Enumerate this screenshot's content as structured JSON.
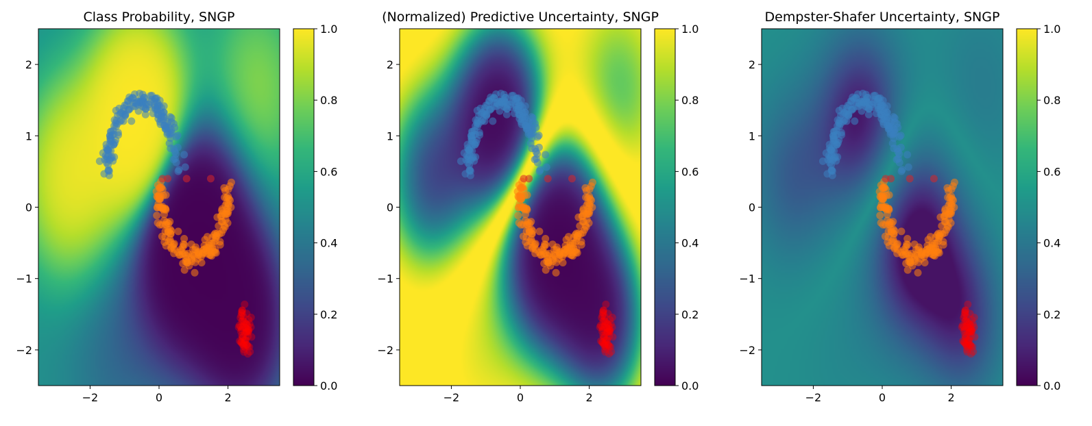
{
  "chart_data": [
    {
      "type": "heatmap",
      "title": "Class Probability, SNGP",
      "xlabel": "",
      "ylabel": "",
      "xlim": [
        -3.5,
        3.5
      ],
      "ylim": [
        -2.5,
        2.5
      ],
      "xticks": [
        "−2",
        "0",
        "2"
      ],
      "yticks": [
        "−2",
        "−1",
        "0",
        "1",
        "2"
      ],
      "colorbar": {
        "range": [
          0.0,
          1.0
        ],
        "ticks": [
          "0.0",
          "0.2",
          "0.4",
          "0.6",
          "0.8",
          "1.0"
        ],
        "colormap": "viridis"
      },
      "field": "class_probability",
      "grid": false,
      "legend": "none"
    },
    {
      "type": "heatmap",
      "title": "(Normalized) Predictive Uncertainty, SNGP",
      "xlabel": "",
      "ylabel": "",
      "xlim": [
        -3.5,
        3.5
      ],
      "ylim": [
        -2.5,
        2.5
      ],
      "xticks": [
        "−2",
        "0",
        "2"
      ],
      "yticks": [
        "−2",
        "−1",
        "0",
        "1",
        "2"
      ],
      "colorbar": {
        "range": [
          0.0,
          1.0
        ],
        "ticks": [
          "0.0",
          "0.2",
          "0.4",
          "0.6",
          "0.8",
          "1.0"
        ],
        "colormap": "viridis"
      },
      "field": "predictive_uncertainty",
      "grid": false,
      "legend": "none"
    },
    {
      "type": "heatmap",
      "title": "Dempster-Shafer Uncertainty, SNGP",
      "xlabel": "",
      "ylabel": "",
      "xlim": [
        -3.5,
        3.5
      ],
      "ylim": [
        -2.5,
        2.5
      ],
      "xticks": [
        "−2",
        "0",
        "2"
      ],
      "yticks": [
        "−2",
        "−1",
        "0",
        "1",
        "2"
      ],
      "colorbar": {
        "range": [
          0.0,
          1.0
        ],
        "ticks": [
          "0.0",
          "0.2",
          "0.4",
          "0.6",
          "0.8",
          "1.0"
        ],
        "colormap": "viridis"
      },
      "field": "dempster_shafer",
      "grid": false,
      "legend": "none"
    }
  ],
  "scatter": {
    "type": "scatter",
    "colors": {
      "blue_moon": "#3a7fc0",
      "orange_moon": "#ff7f0e",
      "ood_cluster": "#ff0000",
      "red_points": "#d62728"
    },
    "blue_moon": {
      "center": [
        -0.5,
        0.5
      ],
      "radius": 1.0,
      "theta_range": [
        0,
        180
      ],
      "count": 180
    },
    "orange_moon": {
      "center": [
        1.0,
        0.3
      ],
      "radius": 1.0,
      "theta_range": [
        180,
        360
      ],
      "count": 180
    },
    "ood_cluster": {
      "center": [
        2.5,
        -1.75
      ],
      "spread": [
        0.08,
        0.16
      ],
      "count": 60
    },
    "red_points": {
      "x": [
        0.1,
        0.25,
        0.8,
        1.5
      ],
      "y": [
        0.4,
        0.4,
        0.4,
        0.4
      ]
    }
  }
}
